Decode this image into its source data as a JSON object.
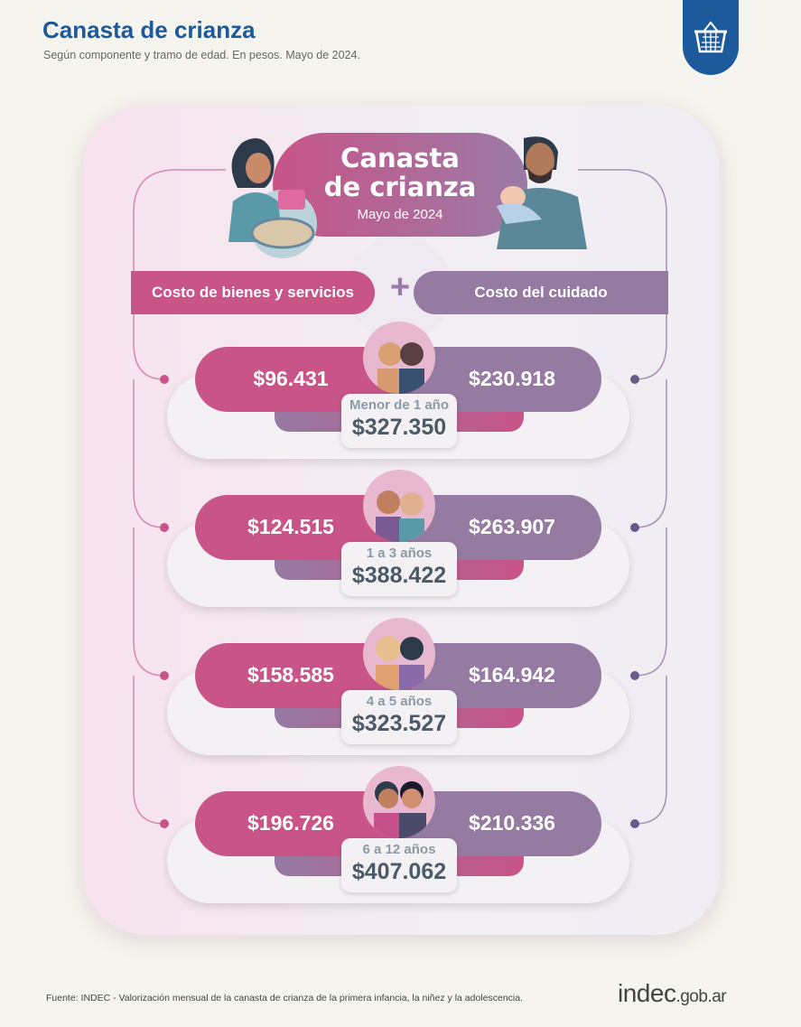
{
  "header": {
    "title": "Canasta de crianza",
    "subtitle": "Según componente y tramo de edad. En pesos. Mayo de 2024."
  },
  "center": {
    "title_line1": "Canasta",
    "title_line2": "de crianza",
    "date": "Mayo de 2024"
  },
  "components": {
    "left": "Costo de bienes y servicios",
    "right": "Costo del cuidado"
  },
  "rows": [
    {
      "bienes": "$96.431",
      "cuidado": "$230.918",
      "age": "Menor de 1 año",
      "total": "$327.350"
    },
    {
      "bienes": "$124.515",
      "cuidado": "$263.907",
      "age": "1 a 3 años",
      "total": "$388.422"
    },
    {
      "bienes": "$158.585",
      "cuidado": "$164.942",
      "age": "4 a 5 años",
      "total": "$323.527"
    },
    {
      "bienes": "$196.726",
      "cuidado": "$210.336",
      "age": "6 a 12 años",
      "total": "$407.062"
    }
  ],
  "footer": {
    "source": "Fuente: INDEC - Valorización mensual de la canasta de crianza de la primera infancia, la niñez y la adolescencia.",
    "logo_main": "indec",
    "logo_domain": ".gob.ar"
  },
  "colors": {
    "pink": "#c85488",
    "purple": "#957aa2",
    "blue": "#1c5a9c"
  },
  "icons": [
    "basket-icon",
    "mother-illustration",
    "father-illustration",
    "children-illustration"
  ]
}
